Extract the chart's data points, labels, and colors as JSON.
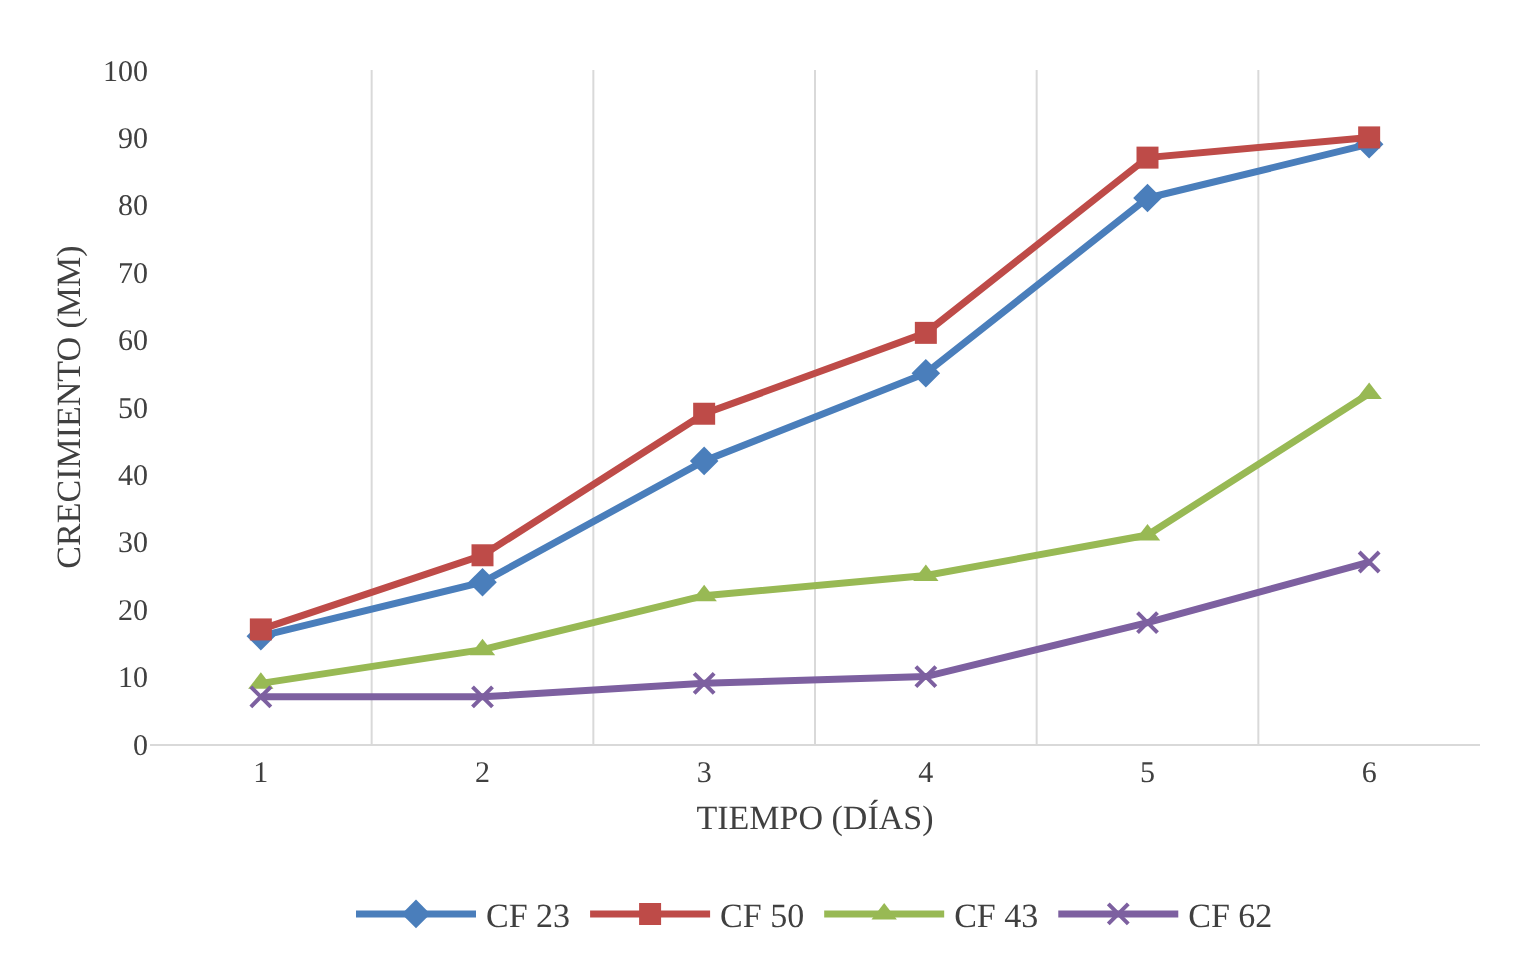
{
  "chart_data": {
    "type": "line",
    "xlabel": "TIEMPO (DÍAS)",
    "ylabel": "CRECIMIENTO (MM)",
    "categories": [
      "1",
      "2",
      "3",
      "4",
      "5",
      "6"
    ],
    "series": [
      {
        "name": "CF 23",
        "color": "#4a7ebb",
        "marker": "diamond",
        "values": [
          16,
          24,
          42,
          55,
          81,
          89
        ]
      },
      {
        "name": "CF 50",
        "color": "#be4b48",
        "marker": "square",
        "values": [
          17,
          28,
          49,
          61,
          87,
          90
        ]
      },
      {
        "name": "CF 43",
        "color": "#98b954",
        "marker": "triangle",
        "values": [
          9,
          14,
          22,
          25,
          31,
          52
        ]
      },
      {
        "name": "CF 62",
        "color": "#7d60a0",
        "marker": "cross",
        "values": [
          7,
          7,
          9,
          10,
          18,
          27
        ]
      }
    ],
    "ylim": [
      0,
      100
    ],
    "yticks": [
      0,
      10,
      20,
      30,
      40,
      50,
      60,
      70,
      80,
      90,
      100
    ],
    "grid": "x",
    "legend": "bottom",
    "line_style": "solid"
  }
}
